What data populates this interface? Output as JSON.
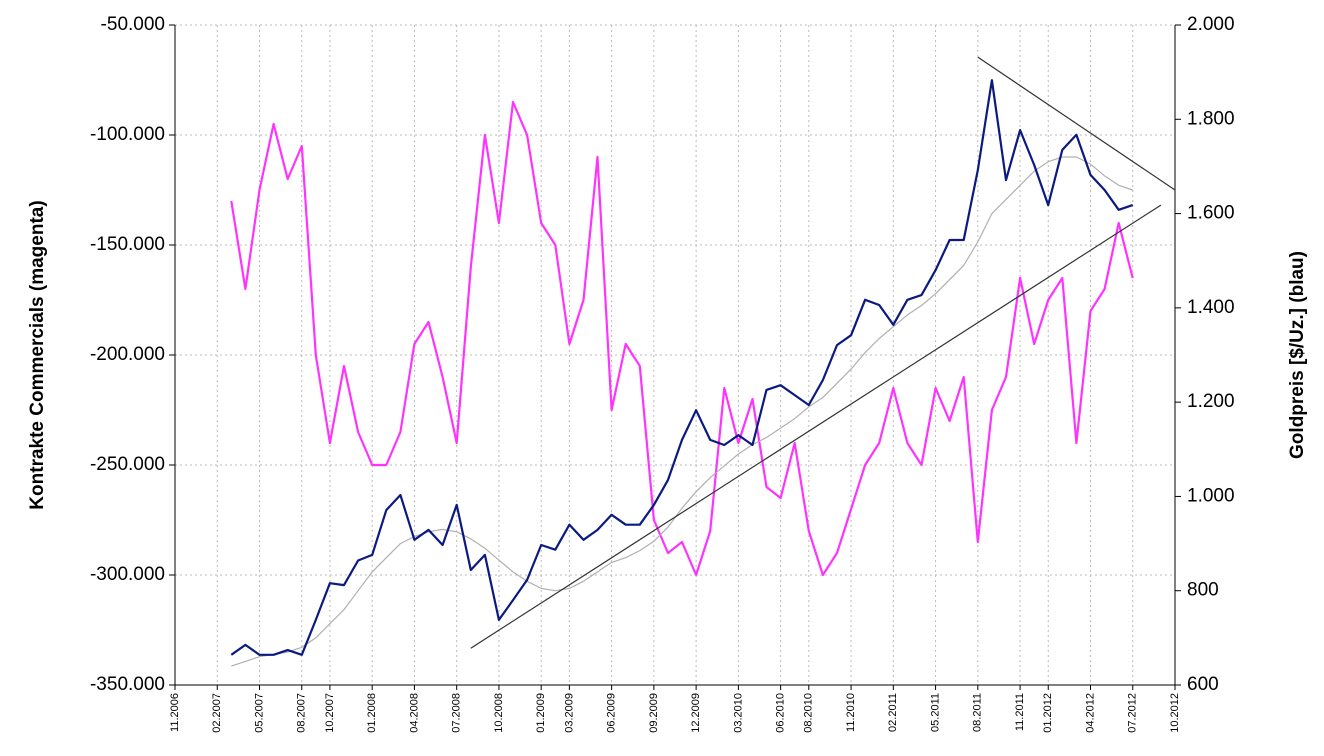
{
  "chart_data": {
    "type": "line",
    "y_label": "Kontrakte Commercials (magenta)",
    "y2_label": "Goldpreis [$/Uz.] (blau)",
    "grid": true,
    "xlim": [
      "11.2006",
      "10.2012"
    ],
    "xticks": [
      "11.2006",
      "02.2007",
      "05.2007",
      "08.2007",
      "10.2007",
      "01.2008",
      "04.2008",
      "07.2008",
      "10.2008",
      "01.2009",
      "03.2009",
      "06.2009",
      "09.2009",
      "12.2009",
      "03.2010",
      "06.2010",
      "08.2010",
      "11.2010",
      "02.2011",
      "05.2011",
      "08.2011",
      "11.2011",
      "01.2012",
      "04.2012",
      "07.2012",
      "10.2012"
    ],
    "ylim": [
      -350000,
      -50000
    ],
    "yticks": [
      {
        "value": -350000,
        "label": "-350.000"
      },
      {
        "value": -300000,
        "label": "-300.000"
      },
      {
        "value": -250000,
        "label": "-250.000"
      },
      {
        "value": -200000,
        "label": "-200.000"
      },
      {
        "value": -150000,
        "label": "-150.000"
      },
      {
        "value": -100000,
        "label": "-100.000"
      },
      {
        "value": -50000,
        "label": "-50.000"
      }
    ],
    "y2lim": [
      600,
      2000
    ],
    "y2ticks": [
      600,
      800,
      {
        "value": 1000,
        "label": "1.000"
      },
      {
        "value": 1200,
        "label": "1.200"
      },
      {
        "value": 1400,
        "label": "1.400"
      },
      {
        "value": 1600,
        "label": "1.600"
      },
      {
        "value": 1800,
        "label": "1.800"
      },
      {
        "value": 2000,
        "label": "2.000"
      }
    ],
    "x": [
      "03.2007",
      "04.2007",
      "05.2007",
      "06.2007",
      "07.2007",
      "08.2007",
      "09.2007",
      "10.2007",
      "11.2007",
      "12.2007",
      "01.2008",
      "02.2008",
      "03.2008",
      "04.2008",
      "05.2008",
      "06.2008",
      "07.2008",
      "08.2008",
      "09.2008",
      "10.2008",
      "11.2008",
      "12.2008",
      "01.2009",
      "02.2009",
      "03.2009",
      "04.2009",
      "05.2009",
      "06.2009",
      "07.2009",
      "08.2009",
      "09.2009",
      "10.2009",
      "11.2009",
      "12.2009",
      "01.2010",
      "02.2010",
      "03.2010",
      "04.2010",
      "05.2010",
      "06.2010",
      "07.2010",
      "08.2010",
      "09.2010",
      "10.2010",
      "11.2010",
      "12.2010",
      "01.2011",
      "02.2011",
      "03.2011",
      "04.2011",
      "05.2011",
      "06.2011",
      "07.2011",
      "08.2011",
      "09.2011",
      "10.2011",
      "11.2011",
      "12.2011",
      "01.2012",
      "02.2012",
      "03.2012",
      "04.2012",
      "05.2012",
      "06.2012",
      "07.2012"
    ],
    "series": [
      {
        "color": "#ff33ff",
        "values": [
          -130000,
          -170000,
          -125000,
          -95000,
          -120000,
          -105000,
          -200000,
          -240000,
          -205000,
          -235000,
          -250000,
          -250000,
          -235000,
          -195000,
          -185000,
          -210000,
          -240000,
          -160000,
          -100000,
          -140000,
          -85000,
          -100000,
          -140000,
          -150000,
          -195000,
          -175000,
          -110000,
          -225000,
          -195000,
          -205000,
          -275000,
          -290000,
          -285000,
          -300000,
          -280000,
          -215000,
          -240000,
          -220000,
          -260000,
          -265000,
          -240000,
          -280000,
          -300000,
          -290000,
          -270000,
          -250000,
          -240000,
          -215000,
          -240000,
          -250000,
          -215000,
          -230000,
          -210000,
          -285000,
          -225000,
          -210000,
          -165000,
          -195000,
          -175000,
          -165000,
          -240000,
          -180000,
          -170000,
          -140000,
          -165000
        ]
      },
      {
        "color": "#b0b0b0",
        "axis": "y2",
        "values": [
          640,
          650,
          660,
          665,
          670,
          680,
          700,
          730,
          760,
          800,
          840,
          870,
          900,
          915,
          925,
          930,
          925,
          910,
          890,
          865,
          840,
          820,
          805,
          800,
          805,
          820,
          840,
          860,
          870,
          885,
          905,
          935,
          975,
          1010,
          1040,
          1065,
          1090,
          1110,
          1125,
          1145,
          1165,
          1190,
          1210,
          1240,
          1270,
          1305,
          1335,
          1360,
          1385,
          1405,
          1430,
          1460,
          1490,
          1540,
          1600,
          1630,
          1660,
          1690,
          1710,
          1720,
          1720,
          1705,
          1680,
          1660,
          1650
        ]
      },
      {
        "color": "#0a1a80",
        "axis": "y2",
        "values": [
          664,
          685,
          664,
          664,
          674,
          664,
          738,
          816,
          812,
          864,
          876,
          971,
          1003,
          908,
          929,
          897,
          982,
          844,
          876,
          738,
          780,
          823,
          897,
          887,
          940,
          908,
          929,
          961,
          940,
          940,
          982,
          1035,
          1120,
          1183,
          1120,
          1109,
          1130,
          1109,
          1226,
          1236,
          1215,
          1194,
          1247,
          1321,
          1342,
          1417,
          1406,
          1364,
          1417,
          1427,
          1480,
          1544,
          1544,
          1692,
          1883,
          1671,
          1777,
          1703,
          1618,
          1735,
          1767,
          1682,
          1650,
          1608,
          1618
        ]
      },
      {
        "color": "#333333",
        "axis": "y2",
        "x": [
          "08.2008",
          "09.2012"
        ],
        "values": [
          678,
          1618
        ]
      },
      {
        "color": "#333333",
        "axis": "y2",
        "x": [
          "08.2011",
          "10.2012"
        ],
        "values": [
          1932,
          1650
        ]
      }
    ]
  }
}
